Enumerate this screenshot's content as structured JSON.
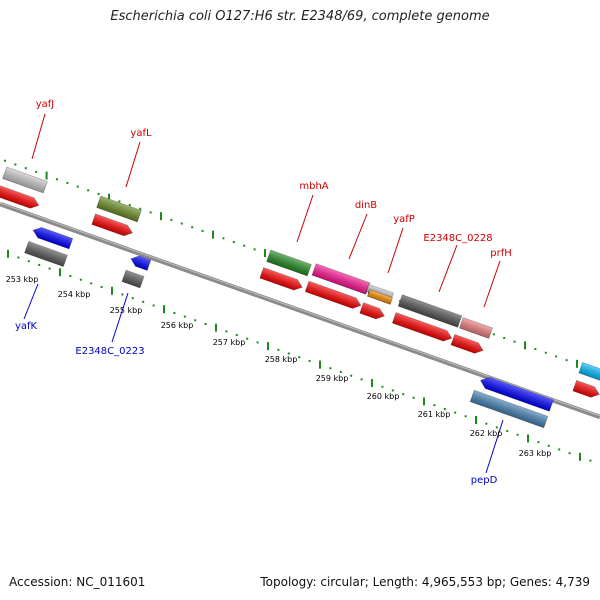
{
  "title": "Escherichia coli O127:H6 str. E2348/69, complete genome",
  "footer": {
    "accession": "Accession: NC_011601",
    "topology": "Topology: circular; Length: 4,965,553 bp; Genes: 4,739"
  },
  "colors": {
    "forward_label": "#cc0000",
    "reverse_label": "#0000cc",
    "backbone": "#777777",
    "ticks": "#1a8a1a",
    "cds": "#ff0000"
  },
  "kbp_labels": [
    "253 kbp",
    "254 kbp",
    "255 kbp",
    "256 kbp",
    "257 kbp",
    "258 kbp",
    "259 kbp",
    "260 kbp",
    "261 kbp",
    "262 kbp",
    "263 kbp"
  ],
  "forward_genes": [
    {
      "name": "yafJ",
      "color": "#c8c8c8"
    },
    {
      "name": "yafL",
      "color": "#6b8e23"
    },
    {
      "name": "mbhA",
      "color": "#228b22"
    },
    {
      "name": "dinB",
      "color": "#ff1493"
    },
    {
      "name": "yafP",
      "color": "#ff8c00"
    },
    {
      "name": "E2348C_0228",
      "color": "#555555"
    },
    {
      "name": "prfH",
      "color": "#f08080"
    }
  ],
  "reverse_genes": [
    {
      "name": "yafK",
      "color": "#0000ff"
    },
    {
      "name": "E2348C_0223",
      "color": "#0000ff"
    },
    {
      "name": "pepD",
      "color": "#0000ff"
    }
  ],
  "unlabeled_features": [
    {
      "color": "#00bfff"
    }
  ]
}
